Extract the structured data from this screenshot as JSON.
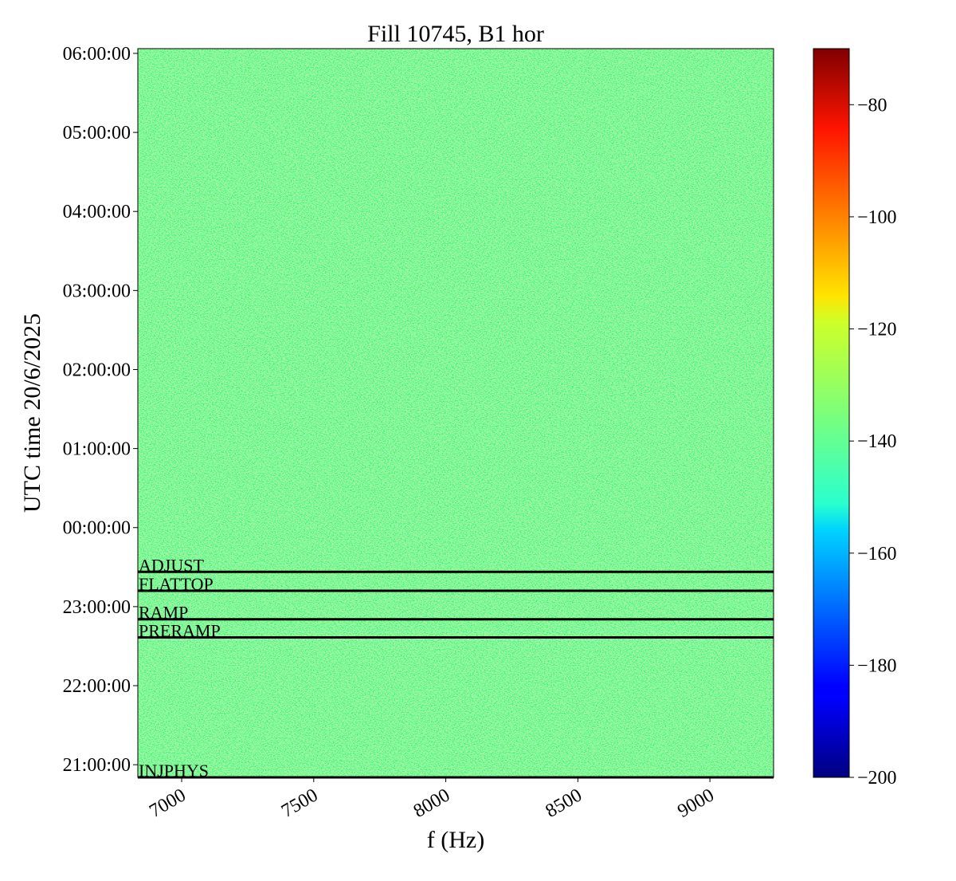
{
  "chart_data": {
    "type": "spectrogram",
    "title": "Fill 10745, B1 hor",
    "x_label": "f (Hz)",
    "y_label": "UTC time 20/6/2025",
    "xlim": [
      6834,
      9241
    ],
    "xticks": [
      7000,
      7500,
      8000,
      8500,
      9000
    ],
    "ylim": [
      20.84,
      30.06
    ],
    "yticks": [
      {
        "value": 21,
        "label": "21:00:00"
      },
      {
        "value": 22,
        "label": "22:00:00"
      },
      {
        "value": 23,
        "label": "23:00:00"
      },
      {
        "value": 24,
        "label": "00:00:00"
      },
      {
        "value": 25,
        "label": "01:00:00"
      },
      {
        "value": 26,
        "label": "02:00:00"
      },
      {
        "value": 27,
        "label": "03:00:00"
      },
      {
        "value": 28,
        "label": "04:00:00"
      },
      {
        "value": 29,
        "label": "05:00:00"
      },
      {
        "value": 30,
        "label": "06:00:00"
      }
    ],
    "colormap": "jet",
    "zlim": [
      -200,
      -70
    ],
    "zticks": [
      {
        "value": -200,
        "label": "−200"
      },
      {
        "value": -180,
        "label": "−180"
      },
      {
        "value": -160,
        "label": "−160"
      },
      {
        "value": -140,
        "label": "−140"
      },
      {
        "value": -120,
        "label": "−120"
      },
      {
        "value": -100,
        "label": "−100"
      },
      {
        "value": -80,
        "label": "−80"
      }
    ],
    "annotations": [
      {
        "label": "INJPHYS",
        "y": 20.84
      },
      {
        "label": "PRERAMP",
        "y": 22.61
      },
      {
        "label": "RAMP",
        "y": 22.84
      },
      {
        "label": "FLATTOP",
        "y": 23.2
      },
      {
        "label": "ADJUST",
        "y": 23.44
      }
    ],
    "annotation_color": "#000000"
  }
}
